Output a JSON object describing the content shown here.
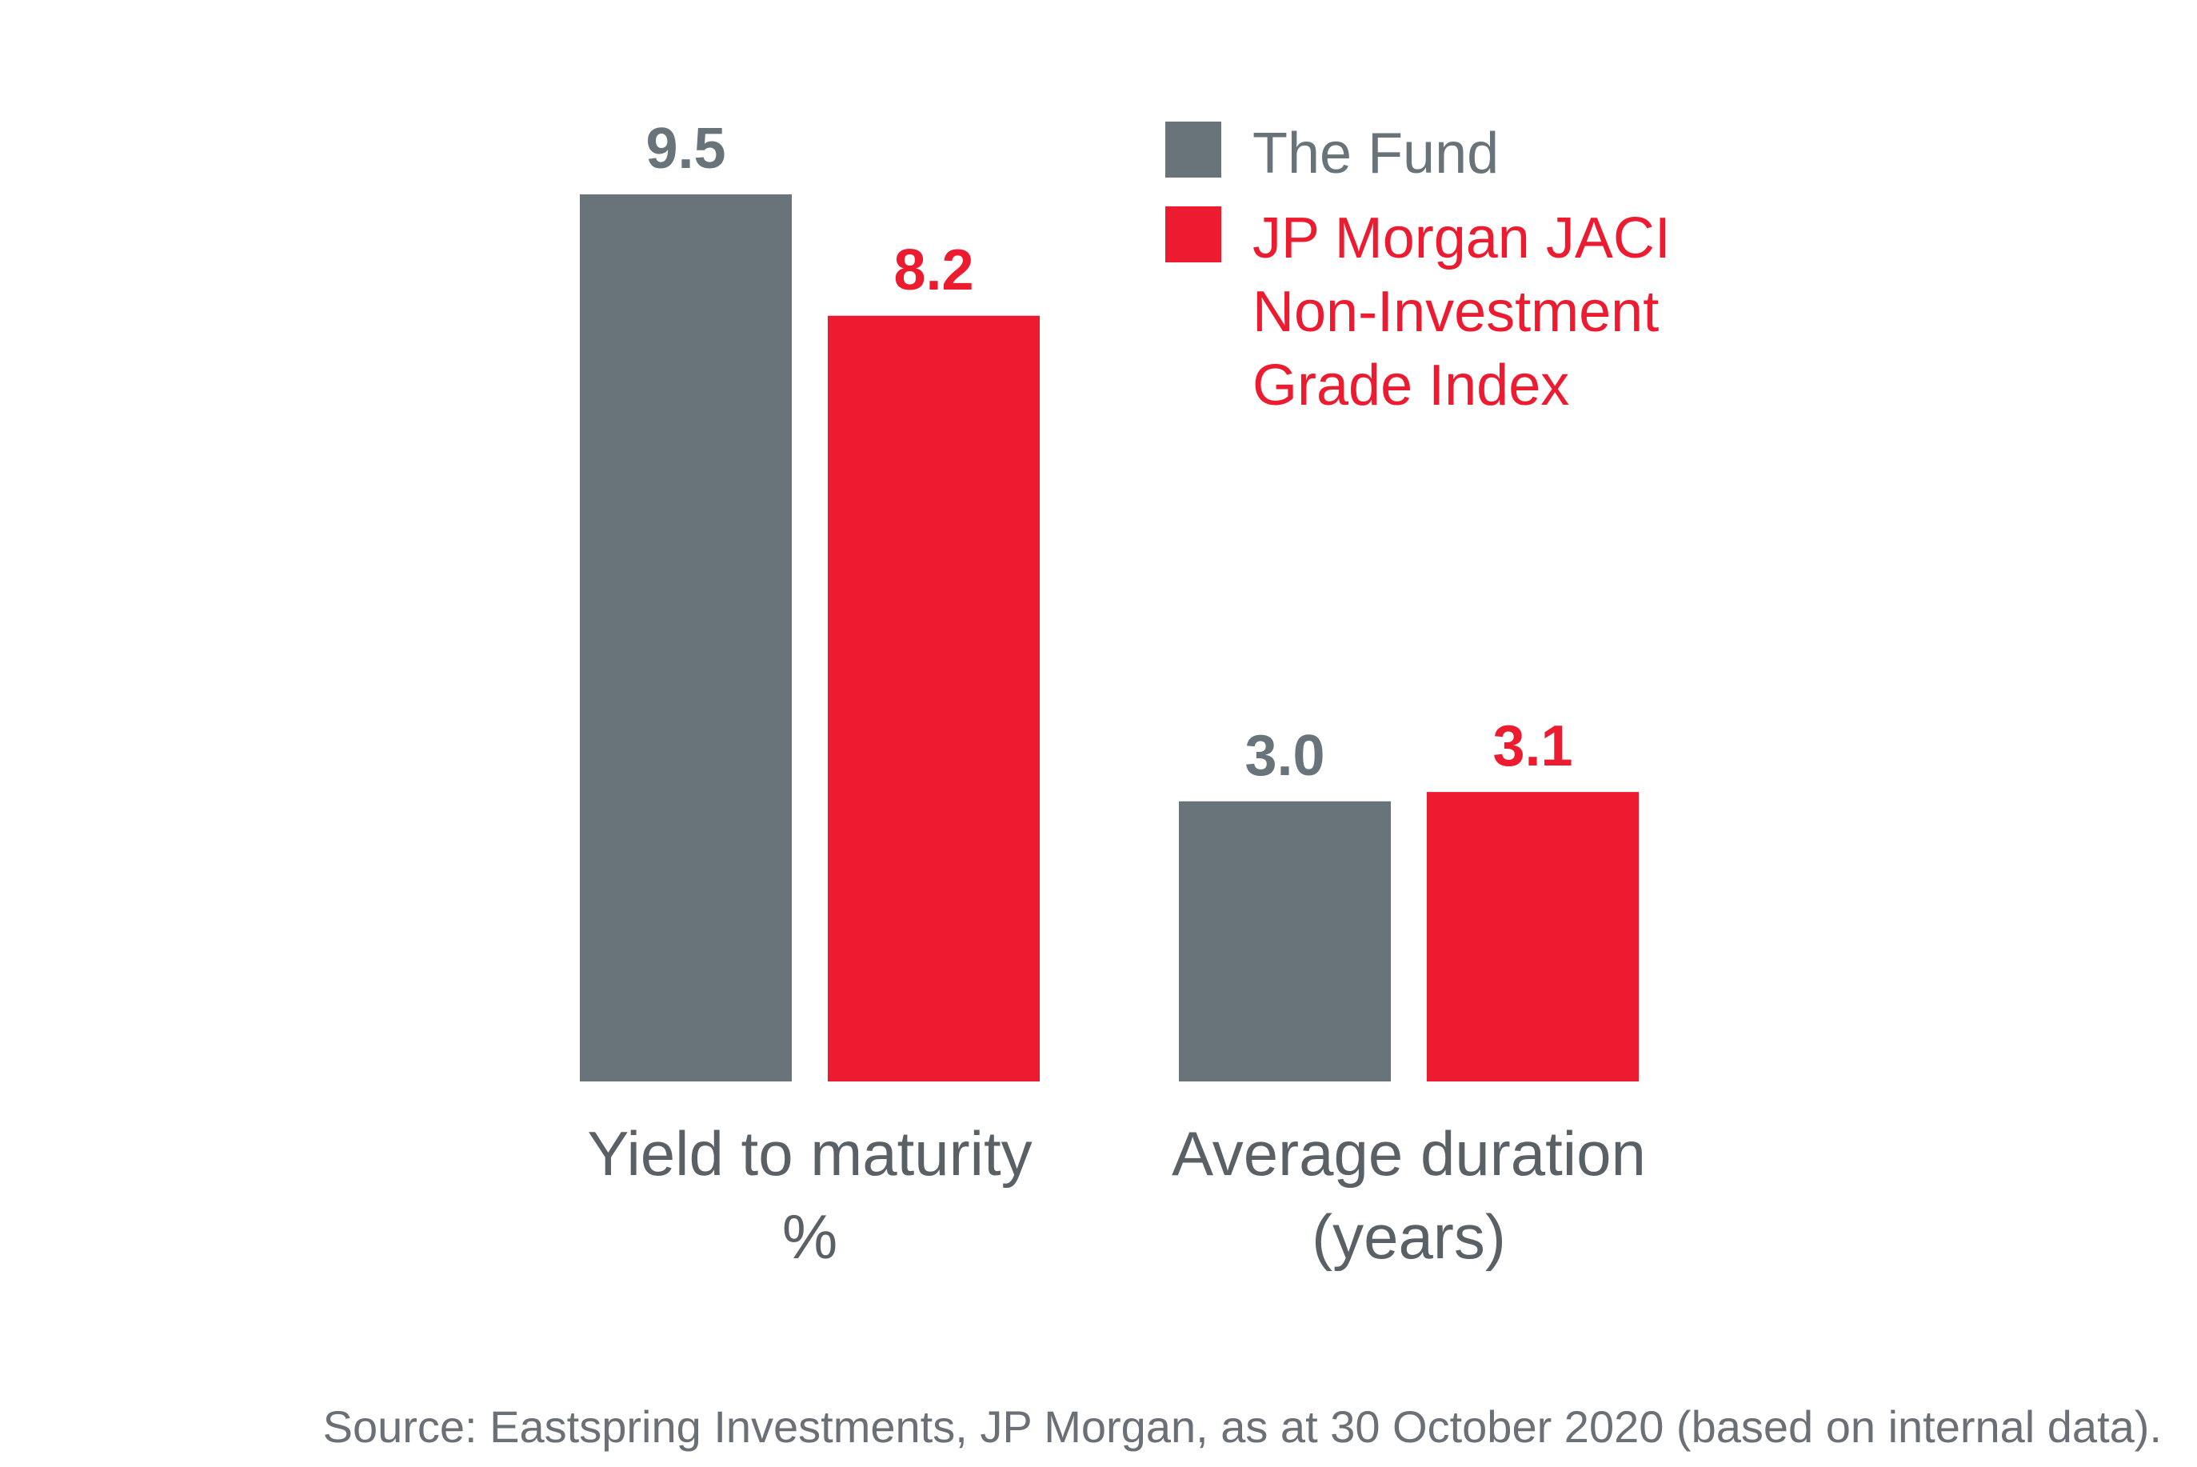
{
  "colors": {
    "fund": "#68737a",
    "index": "#ed1b2f",
    "text": "#5a6166",
    "source": "#6a7075"
  },
  "chart_data": {
    "type": "bar",
    "categories": [
      {
        "lines": [
          "Yield to maturity",
          "%"
        ]
      },
      {
        "lines": [
          "Average duration",
          "(years)"
        ]
      }
    ],
    "series": [
      {
        "name": "The Fund",
        "name_lines": [
          "The Fund"
        ],
        "color": "#68737a",
        "values": [
          9.5,
          3.0
        ],
        "labels": [
          "9.5",
          "3.0"
        ]
      },
      {
        "name": "JP Morgan JACI Non-Investment Grade Index",
        "name_lines": [
          "JP Morgan JACI",
          "Non-Investment",
          "Grade Index"
        ],
        "color": "#ed1b2f",
        "values": [
          8.2,
          3.1
        ],
        "labels": [
          "8.2",
          "3.1"
        ]
      }
    ],
    "ylim": [
      0,
      9.5
    ],
    "grid": false,
    "legend": "top-right"
  },
  "source": "Source: Eastspring Investments, JP Morgan, as at 30 October 2020 (based on internal data)."
}
